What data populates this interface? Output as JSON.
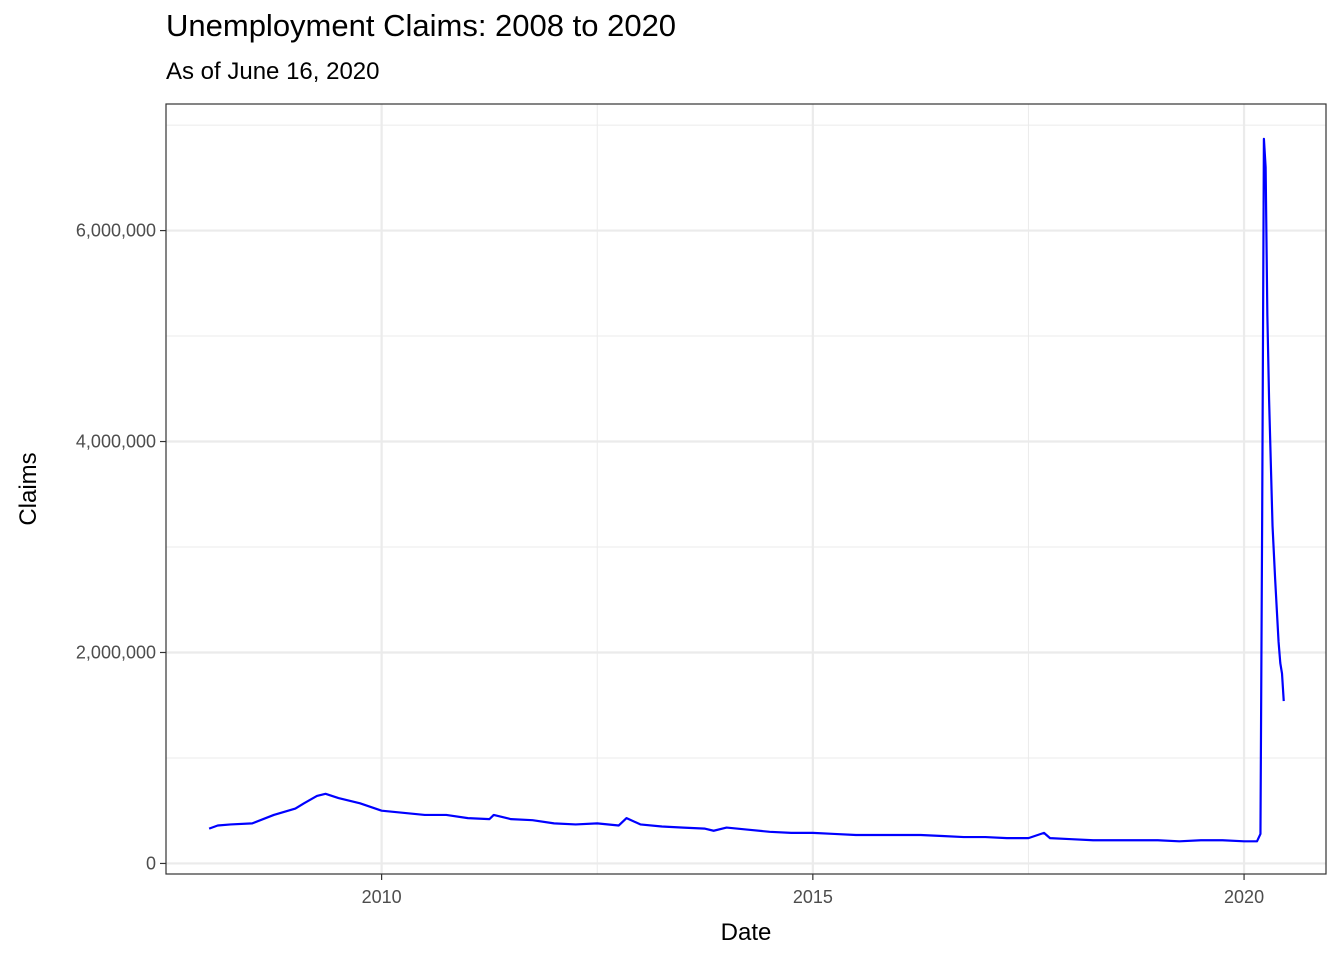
{
  "chart_data": {
    "type": "line",
    "title": "Unemployment Claims: 2008 to 2020",
    "subtitle": "As of June 16, 2020",
    "xlabel": "Date",
    "ylabel": "Claims",
    "x_ticks": [
      2010,
      2015,
      2020
    ],
    "y_ticks": [
      "0",
      "2,000,000",
      "4,000,000",
      "6,000,000"
    ],
    "xlim": [
      2007.5,
      2020.95
    ],
    "ylim": [
      -100000,
      7200000
    ],
    "grid": true,
    "line_color": "#0000ff",
    "series": [
      {
        "x": [
          2008.0,
          2008.1,
          2008.25,
          2008.5,
          2008.75,
          2009.0,
          2009.1,
          2009.25,
          2009.35,
          2009.5,
          2009.75,
          2010.0,
          2010.25,
          2010.5,
          2010.75,
          2011.0,
          2011.25,
          2011.3,
          2011.5,
          2011.75,
          2012.0,
          2012.25,
          2012.5,
          2012.75,
          2012.84,
          2013.0,
          2013.25,
          2013.5,
          2013.75,
          2013.85,
          2014.0,
          2014.25,
          2014.5,
          2014.75,
          2015.0,
          2015.25,
          2015.5,
          2015.75,
          2016.0,
          2016.25,
          2016.5,
          2016.75,
          2017.0,
          2017.25,
          2017.5,
          2017.68,
          2017.75,
          2018.0,
          2018.25,
          2018.5,
          2018.75,
          2019.0,
          2019.25,
          2019.5,
          2019.75,
          2020.0,
          2020.15,
          2020.19,
          2020.21,
          2020.23,
          2020.25,
          2020.27,
          2020.29,
          2020.31,
          2020.33,
          2020.36,
          2020.38,
          2020.4,
          2020.42,
          2020.44,
          2020.46
        ],
        "y": [
          330000,
          360000,
          370000,
          380000,
          460000,
          520000,
          570000,
          640000,
          660000,
          620000,
          570000,
          500000,
          480000,
          460000,
          460000,
          430000,
          420000,
          460000,
          420000,
          410000,
          380000,
          370000,
          380000,
          360000,
          430000,
          370000,
          350000,
          340000,
          330000,
          310000,
          340000,
          320000,
          300000,
          290000,
          290000,
          280000,
          270000,
          270000,
          270000,
          270000,
          260000,
          250000,
          250000,
          240000,
          240000,
          290000,
          240000,
          230000,
          220000,
          220000,
          220000,
          220000,
          210000,
          220000,
          220000,
          210000,
          210000,
          280000,
          3300000,
          6870000,
          6600000,
          5200000,
          4400000,
          3800000,
          3200000,
          2700000,
          2400000,
          2100000,
          1900000,
          1800000,
          1540000
        ]
      }
    ]
  }
}
